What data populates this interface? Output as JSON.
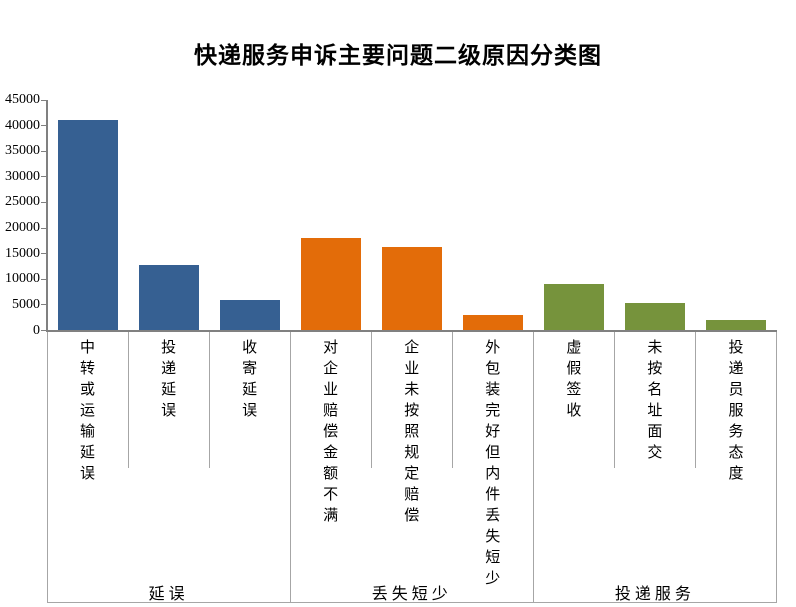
{
  "chart_data": {
    "type": "bar",
    "title": "快递服务申诉主要问题二级原因分类图",
    "xlabel": "",
    "ylabel": "",
    "ylim": [
      0,
      45000
    ],
    "y_tick_interval": 5000,
    "y_tick_labels": [
      "0",
      "5000",
      "10000",
      "15000",
      "20000",
      "25000",
      "30000",
      "35000",
      "40000",
      "45000"
    ],
    "grid": false,
    "legend_position": "none",
    "axis_color": "#808080",
    "divider_color": "#a6a6a6",
    "groups": [
      {
        "name": "延误",
        "color": "#366092",
        "categories": [
          "中转或运输延误",
          "投递延误",
          "收寄延误"
        ],
        "values": [
          41000,
          12700,
          6000
        ]
      },
      {
        "name": "丢失短少",
        "color": "#E36C09",
        "categories": [
          "对企业赔偿金额不满",
          "企业未按照规定赔偿",
          "外包装完好但内件丢失短少"
        ],
        "values": [
          18000,
          16300,
          3000
        ]
      },
      {
        "name": "投递服务",
        "color": "#76933C",
        "categories": [
          "虚假签收",
          "未按名址面交",
          "投递员服务态度"
        ],
        "values": [
          9000,
          5300,
          2100
        ]
      }
    ]
  }
}
